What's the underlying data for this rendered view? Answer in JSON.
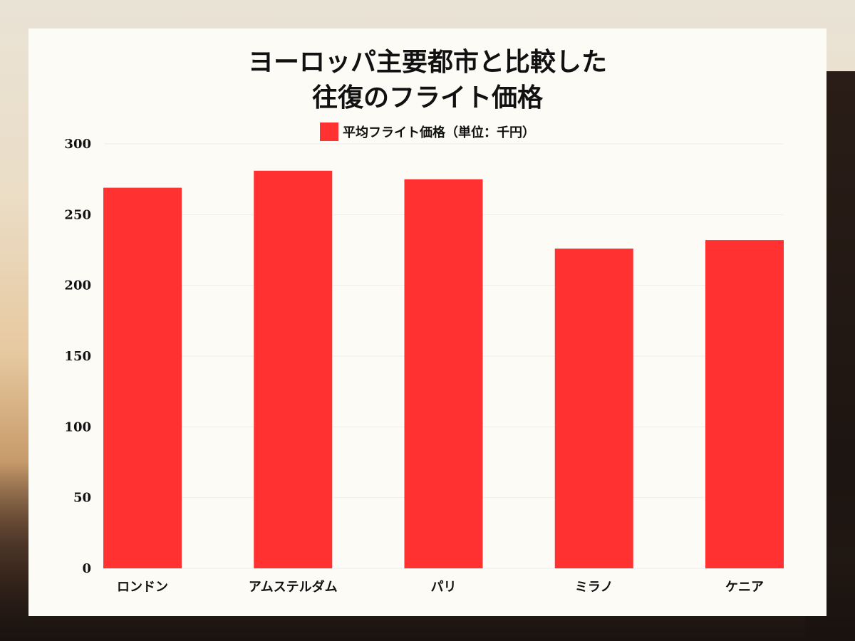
{
  "chart_data": {
    "type": "bar",
    "title_lines": [
      "ヨーロッパ主要都市と比較した",
      "往復のフライト価格"
    ],
    "legend": "平均フライト価格（単位：千円）",
    "categories": [
      "ロンドン",
      "アムステルダム",
      "パリ",
      "ミラノ",
      "ケニア"
    ],
    "series": [
      {
        "name": "平均フライト価格（単位：千円）",
        "values": [
          269,
          281,
          275,
          226,
          232
        ],
        "color": "#ff3131"
      }
    ],
    "yticks": [
      0,
      50,
      100,
      150,
      200,
      250,
      300
    ],
    "ylim": [
      0,
      300
    ],
    "grid": true,
    "legend_position": "top-center"
  },
  "colors": {
    "bar": "#ff3131",
    "card_background": "#fcfbf6",
    "gridline": "#eeeeee"
  }
}
